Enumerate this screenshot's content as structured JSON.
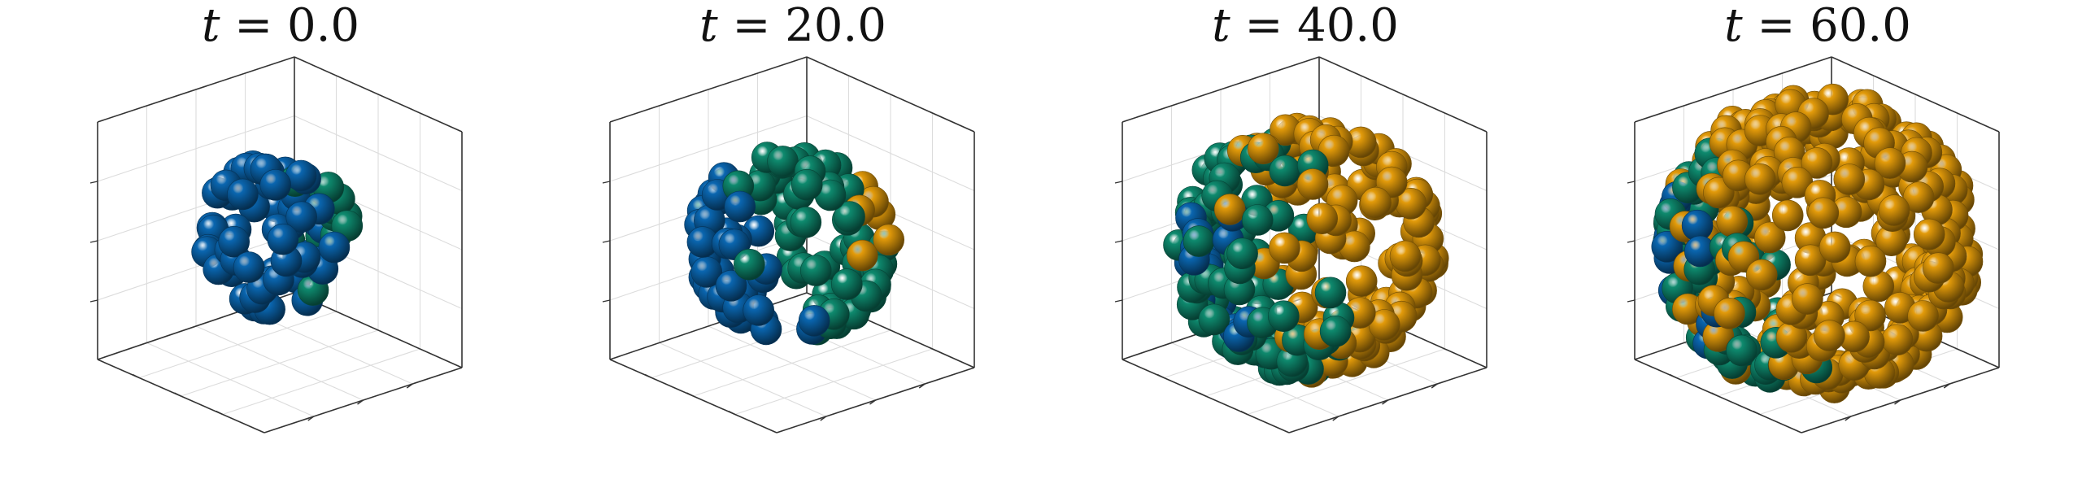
{
  "figure": {
    "panels": [
      {
        "t_label": "t",
        "t_value": "0.0",
        "cells": {
          "blue": 60,
          "green": 14,
          "orange": 0
        }
      },
      {
        "t_label": "t",
        "t_value": "20.0",
        "cells": {
          "blue": 45,
          "green": 60,
          "orange": 6
        }
      },
      {
        "t_label": "t",
        "t_value": "40.0",
        "cells": {
          "blue": 22,
          "green": 95,
          "orange": 120
        }
      },
      {
        "t_label": "t",
        "t_value": "60.0",
        "cells": {
          "blue": 14,
          "green": 55,
          "orange": 300
        }
      }
    ],
    "colors": {
      "blue": "#0a66b0",
      "green": "#0e8a6e",
      "orange": "#e39b0a",
      "axis": "#333333",
      "grid": "#dcdcdc"
    }
  }
}
